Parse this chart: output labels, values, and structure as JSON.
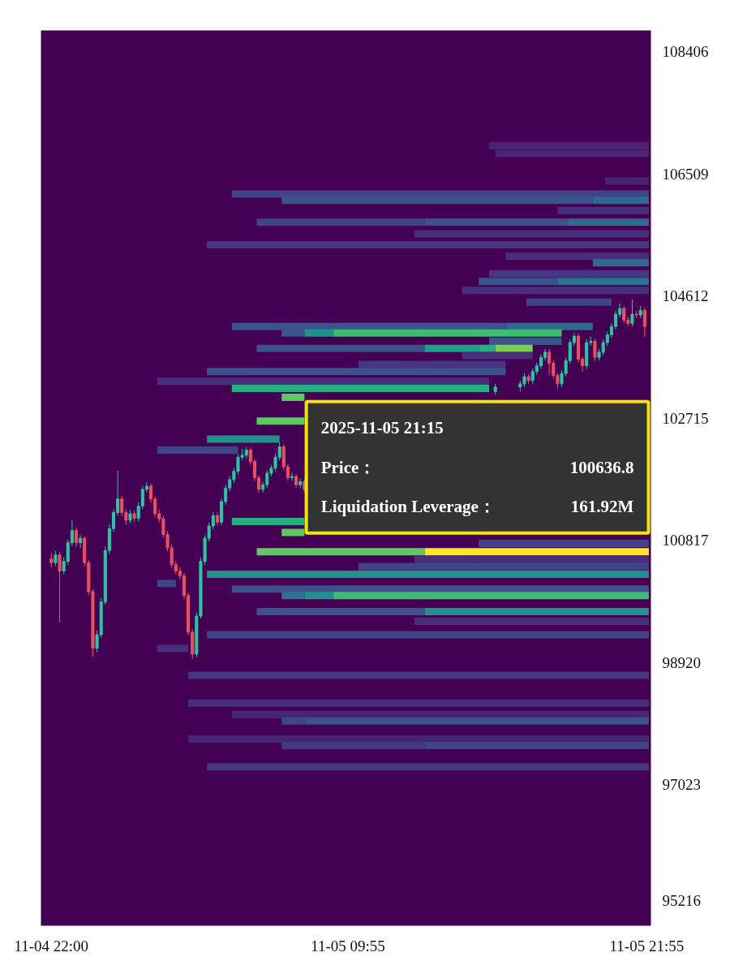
{
  "chart_data": {
    "type": "candlestick",
    "x": [
      "2025-11-04T22:00",
      "2025-11-04T22:10",
      "2025-11-04T22:20",
      "2025-11-04T22:30",
      "2025-11-04T22:40",
      "2025-11-04T22:50",
      "2025-11-04T23:00",
      "2025-11-04T23:10",
      "2025-11-04T23:20",
      "2025-11-04T23:30",
      "2025-11-04T23:40",
      "2025-11-04T23:50",
      "2025-11-05T00:00",
      "2025-11-05T00:10",
      "2025-11-05T00:20",
      "2025-11-05T00:30",
      "2025-11-05T00:40",
      "2025-11-05T00:50",
      "2025-11-05T01:00",
      "2025-11-05T01:10",
      "2025-11-05T01:20",
      "2025-11-05T01:30",
      "2025-11-05T01:40",
      "2025-11-05T01:50",
      "2025-11-05T02:00",
      "2025-11-05T02:10",
      "2025-11-05T02:20",
      "2025-11-05T02:30",
      "2025-11-05T02:40",
      "2025-11-05T02:50",
      "2025-11-05T03:00",
      "2025-11-05T03:10",
      "2025-11-05T03:20",
      "2025-11-05T03:30",
      "2025-11-05T03:40",
      "2025-11-05T03:50",
      "2025-11-05T04:00",
      "2025-11-05T04:10",
      "2025-11-05T04:20",
      "2025-11-05T04:30",
      "2025-11-05T04:40",
      "2025-11-05T04:50",
      "2025-11-05T05:00",
      "2025-11-05T05:10",
      "2025-11-05T05:20",
      "2025-11-05T05:30",
      "2025-11-05T05:40",
      "2025-11-05T05:50",
      "2025-11-05T06:00",
      "2025-11-05T06:10",
      "2025-11-05T06:20",
      "2025-11-05T06:30",
      "2025-11-05T06:40",
      "2025-11-05T06:50",
      "2025-11-05T07:00",
      "2025-11-05T07:10",
      "2025-11-05T07:20",
      "2025-11-05T07:30",
      "2025-11-05T07:40",
      "2025-11-05T07:50",
      "2025-11-05T08:00",
      "2025-11-05T08:10",
      "2025-11-05T15:50",
      "2025-11-05T16:50",
      "2025-11-05T17:00",
      "2025-11-05T17:10",
      "2025-11-05T17:20",
      "2025-11-05T17:30",
      "2025-11-05T17:40",
      "2025-11-05T17:50",
      "2025-11-05T18:00",
      "2025-11-05T18:10",
      "2025-11-05T18:20",
      "2025-11-05T18:30",
      "2025-11-05T18:40",
      "2025-11-05T18:50",
      "2025-11-05T19:00",
      "2025-11-05T19:10",
      "2025-11-05T19:20",
      "2025-11-05T19:30",
      "2025-11-05T19:40",
      "2025-11-05T19:50",
      "2025-11-05T20:00",
      "2025-11-05T20:10",
      "2025-11-05T20:20",
      "2025-11-05T20:30",
      "2025-11-05T20:40",
      "2025-11-05T20:50",
      "2025-11-05T21:00",
      "2025-11-05T21:10",
      "2025-11-05T21:20",
      "2025-11-05T21:30",
      "2025-11-05T21:40",
      "2025-11-05T21:50"
    ],
    "ohlc": [
      [
        100530,
        100620,
        100400,
        100470
      ],
      [
        100470,
        100650,
        100420,
        100590
      ],
      [
        100590,
        100640,
        99540,
        100340
      ],
      [
        100340,
        100560,
        100290,
        100490
      ],
      [
        100490,
        100830,
        100440,
        100780
      ],
      [
        100780,
        101140,
        100730,
        100970
      ],
      [
        100970,
        101020,
        100720,
        100780
      ],
      [
        100780,
        100900,
        100700,
        100850
      ],
      [
        100850,
        100880,
        100420,
        100470
      ],
      [
        100470,
        100510,
        99960,
        100020
      ],
      [
        100020,
        100060,
        99010,
        99140
      ],
      [
        99140,
        99420,
        99080,
        99350
      ],
      [
        99350,
        99920,
        99300,
        99860
      ],
      [
        99860,
        100720,
        99820,
        100660
      ],
      [
        100660,
        101060,
        100600,
        101000
      ],
      [
        101000,
        101300,
        100950,
        101250
      ],
      [
        101250,
        101900,
        101200,
        101460
      ],
      [
        101460,
        101510,
        101200,
        101250
      ],
      [
        101250,
        101300,
        101060,
        101130
      ],
      [
        101130,
        101290,
        101080,
        101230
      ],
      [
        101230,
        101280,
        101100,
        101160
      ],
      [
        101160,
        101410,
        101110,
        101350
      ],
      [
        101350,
        101660,
        101300,
        101610
      ],
      [
        101610,
        101720,
        101560,
        101660
      ],
      [
        101660,
        101700,
        101400,
        101460
      ],
      [
        101460,
        101500,
        101180,
        101230
      ],
      [
        101230,
        101290,
        101100,
        101150
      ],
      [
        101150,
        101200,
        100860,
        100910
      ],
      [
        100910,
        100960,
        100650,
        100700
      ],
      [
        100700,
        100750,
        100390,
        100440
      ],
      [
        100440,
        100500,
        100290,
        100340
      ],
      [
        100340,
        100400,
        100210,
        100270
      ],
      [
        100270,
        100310,
        99900,
        99960
      ],
      [
        99960,
        100000,
        99340,
        99390
      ],
      [
        99390,
        99430,
        98970,
        99050
      ],
      [
        99050,
        99700,
        99000,
        99640
      ],
      [
        99640,
        100550,
        99600,
        100490
      ],
      [
        100490,
        100900,
        100440,
        100850
      ],
      [
        100850,
        101090,
        100800,
        101040
      ],
      [
        101040,
        101260,
        100990,
        101200
      ],
      [
        101200,
        101250,
        101050,
        101100
      ],
      [
        101100,
        101470,
        101050,
        101420
      ],
      [
        101420,
        101680,
        101370,
        101630
      ],
      [
        101630,
        101810,
        101580,
        101760
      ],
      [
        101760,
        101940,
        101710,
        101890
      ],
      [
        101890,
        102160,
        101840,
        102110
      ],
      [
        102110,
        102240,
        102060,
        102140
      ],
      [
        102140,
        102270,
        102090,
        102220
      ],
      [
        102220,
        102260,
        101990,
        102040
      ],
      [
        102040,
        102080,
        101740,
        101790
      ],
      [
        101790,
        101830,
        101560,
        101610
      ],
      [
        101610,
        101730,
        101560,
        101680
      ],
      [
        101680,
        101910,
        101630,
        101860
      ],
      [
        101860,
        101990,
        101810,
        101940
      ],
      [
        101940,
        102160,
        101890,
        102110
      ],
      [
        102110,
        102340,
        102060,
        102270
      ],
      [
        102270,
        102310,
        101910,
        101960
      ],
      [
        101960,
        102000,
        101740,
        101790
      ],
      [
        101790,
        101870,
        101740,
        101810
      ],
      [
        101810,
        101850,
        101630,
        101680
      ],
      [
        101680,
        101780,
        101630,
        101730
      ],
      [
        101730,
        101770,
        101560,
        101610
      ],
      [
        103130,
        103250,
        103080,
        103200
      ],
      [
        103200,
        103300,
        103130,
        103250
      ],
      [
        103250,
        103410,
        103200,
        103360
      ],
      [
        103360,
        103400,
        103250,
        103300
      ],
      [
        103300,
        103490,
        103250,
        103440
      ],
      [
        103440,
        103580,
        103390,
        103530
      ],
      [
        103530,
        103710,
        103480,
        103660
      ],
      [
        103660,
        103790,
        103610,
        103740
      ],
      [
        103740,
        103790,
        103380,
        103570
      ],
      [
        103570,
        103620,
        103330,
        103380
      ],
      [
        103380,
        103420,
        103170,
        103250
      ],
      [
        103250,
        103460,
        103200,
        103410
      ],
      [
        103410,
        103660,
        103360,
        103610
      ],
      [
        103610,
        103940,
        103560,
        103890
      ],
      [
        103890,
        104040,
        103840,
        103990
      ],
      [
        103990,
        104030,
        103580,
        103630
      ],
      [
        103630,
        103670,
        103440,
        103530
      ],
      [
        103530,
        103940,
        103480,
        103890
      ],
      [
        103890,
        103980,
        103840,
        103910
      ],
      [
        103910,
        103950,
        103610,
        103660
      ],
      [
        103660,
        103790,
        103610,
        103740
      ],
      [
        103740,
        103940,
        103690,
        103890
      ],
      [
        103890,
        104060,
        103840,
        104010
      ],
      [
        104010,
        104190,
        103960,
        104140
      ],
      [
        104140,
        104380,
        104090,
        104330
      ],
      [
        104330,
        104500,
        104280,
        104420
      ],
      [
        104420,
        104460,
        104190,
        104240
      ],
      [
        104240,
        104290,
        104140,
        104190
      ],
      [
        104190,
        104560,
        104140,
        104330
      ],
      [
        104330,
        104380,
        104270,
        104320
      ],
      [
        104320,
        104460,
        104270,
        104390
      ],
      [
        104390,
        104430,
        103980,
        104140
      ]
    ],
    "colors": [
      "#ef4f5d",
      "#26c9a2",
      "#ef4f5d",
      "#26c9a2",
      "#26c9a2",
      "#26c9a2",
      "#ef4f5d",
      "#26c9a2",
      "#ef4f5d",
      "#ef4f5d",
      "#ef4f5d",
      "#26c9a2",
      "#26c9a2",
      "#26c9a2",
      "#26c9a2",
      "#26c9a2",
      "#26c9a2",
      "#ef4f5d",
      "#ef4f5d",
      "#26c9a2",
      "#ef4f5d",
      "#26c9a2",
      "#26c9a2",
      "#26c9a2",
      "#ef4f5d",
      "#ef4f5d",
      "#ef4f5d",
      "#ef4f5d",
      "#ef4f5d",
      "#ef4f5d",
      "#ef4f5d",
      "#ef4f5d",
      "#ef4f5d",
      "#ef4f5d",
      "#ef4f5d",
      "#26c9a2",
      "#26c9a2",
      "#26c9a2",
      "#26c9a2",
      "#26c9a2",
      "#ef4f5d",
      "#26c9a2",
      "#26c9a2",
      "#26c9a2",
      "#26c9a2",
      "#26c9a2",
      "#26c9a2",
      "#26c9a2",
      "#ef4f5d",
      "#ef4f5d",
      "#ef4f5d",
      "#26c9a2",
      "#26c9a2",
      "#26c9a2",
      "#26c9a2",
      "#26c9a2",
      "#ef4f5d",
      "#ef4f5d",
      "#26c9a2",
      "#ef4f5d",
      "#26c9a2",
      "#ef4f5d",
      "#26c9a2",
      "#26c9a2",
      "#26c9a2",
      "#ef4f5d",
      "#26c9a2",
      "#26c9a2",
      "#26c9a2",
      "#26c9a2",
      "#ef4f5d",
      "#ef4f5d",
      "#ef4f5d",
      "#26c9a2",
      "#26c9a2",
      "#26c9a2",
      "#26c9a2",
      "#ef4f5d",
      "#ef4f5d",
      "#26c9a2",
      "#26c9a2",
      "#ef4f5d",
      "#26c9a2",
      "#26c9a2",
      "#26c9a2",
      "#26c9a2",
      "#26c9a2",
      "#26c9a2",
      "#ef4f5d",
      "#ef4f5d",
      "#26c9a2",
      "#ef4f5d",
      "#26c9a2",
      "#ef4f5d"
    ],
    "series": [
      {
        "type": "line",
        "color": "#482475",
        "x": [
          "2025-11-05T15:35",
          "2025-11-05T22:00"
        ],
        "values": [
          106950,
          106950
        ]
      },
      {
        "type": "line",
        "color": "#482475",
        "x": [
          "2025-11-05T15:50",
          "2025-11-05T22:00"
        ],
        "values": [
          106830,
          106830
        ]
      },
      {
        "type": "line",
        "color": "#482475",
        "x": [
          "2025-11-05T20:15",
          "2025-11-05T22:00"
        ],
        "values": [
          106400,
          106400
        ]
      },
      {
        "type": "line",
        "color": "#414487",
        "x": [
          "2025-11-05T05:15",
          "2025-11-05T22:00"
        ],
        "values": [
          106200,
          106200
        ]
      },
      {
        "type": "line",
        "color": "#3b528b",
        "x": [
          "2025-11-05T07:15",
          "2025-11-05T19:45"
        ],
        "values": [
          106100,
          106100
        ]
      },
      {
        "type": "line",
        "color": "#31688e",
        "x": [
          "2025-11-05T19:45",
          "2025-11-05T22:00"
        ],
        "values": [
          106100,
          106100
        ]
      },
      {
        "type": "line",
        "color": "#472f7d",
        "x": [
          "2025-11-05T18:20",
          "2025-11-05T22:00"
        ],
        "values": [
          105940,
          105940
        ]
      },
      {
        "type": "line",
        "color": "#414487",
        "x": [
          "2025-11-05T06:15",
          "2025-11-05T13:00"
        ],
        "values": [
          105760,
          105760
        ]
      },
      {
        "type": "line",
        "color": "#3b528b",
        "x": [
          "2025-11-05T13:00",
          "2025-11-05T18:45"
        ],
        "values": [
          105760,
          105760
        ]
      },
      {
        "type": "line",
        "color": "#31688e",
        "x": [
          "2025-11-05T18:45",
          "2025-11-05T22:00"
        ],
        "values": [
          105760,
          105760
        ]
      },
      {
        "type": "line",
        "color": "#472f7d",
        "x": [
          "2025-11-05T12:35",
          "2025-11-05T22:00"
        ],
        "values": [
          105580,
          105580
        ]
      },
      {
        "type": "line",
        "color": "#453781",
        "x": [
          "2025-11-05T04:15",
          "2025-11-05T22:00"
        ],
        "values": [
          105410,
          105410
        ]
      },
      {
        "type": "line",
        "color": "#472f7d",
        "x": [
          "2025-11-05T16:15",
          "2025-11-05T22:00"
        ],
        "values": [
          105230,
          105230
        ]
      },
      {
        "type": "line",
        "color": "#31688e",
        "x": [
          "2025-11-05T19:45",
          "2025-11-05T22:00"
        ],
        "values": [
          105130,
          105130
        ]
      },
      {
        "type": "line",
        "color": "#453781",
        "x": [
          "2025-11-05T15:35",
          "2025-11-05T22:00"
        ],
        "values": [
          104960,
          104960
        ]
      },
      {
        "type": "line",
        "color": "#3b528b",
        "x": [
          "2025-11-05T15:10",
          "2025-11-05T18:20"
        ],
        "values": [
          104840,
          104840
        ]
      },
      {
        "type": "line",
        "color": "#2c728e",
        "x": [
          "2025-11-05T18:20",
          "2025-11-05T22:00"
        ],
        "values": [
          104840,
          104840
        ]
      },
      {
        "type": "line",
        "color": "#472f7d",
        "x": [
          "2025-11-05T14:30",
          "2025-11-05T22:00"
        ],
        "values": [
          104700,
          104700
        ]
      },
      {
        "type": "line",
        "color": "#414487",
        "x": [
          "2025-11-05T17:05",
          "2025-11-05T20:30"
        ],
        "values": [
          104520,
          104520
        ]
      },
      {
        "type": "line",
        "color": "#3b528b",
        "x": [
          "2025-11-05T05:15",
          "2025-11-05T16:15"
        ],
        "values": [
          104140,
          104140
        ]
      },
      {
        "type": "line",
        "color": "#31688e",
        "x": [
          "2025-11-05T16:15",
          "2025-11-05T19:45"
        ],
        "values": [
          104140,
          104140
        ]
      },
      {
        "type": "line",
        "color": "#3b528b",
        "x": [
          "2025-11-05T07:15",
          "2025-11-05T08:10"
        ],
        "values": [
          104040,
          104040
        ]
      },
      {
        "type": "line",
        "color": "#21918c",
        "x": [
          "2025-11-05T08:10",
          "2025-11-05T09:20"
        ],
        "values": [
          104040,
          104040
        ]
      },
      {
        "type": "line",
        "color": "#3fbc73",
        "x": [
          "2025-11-05T09:20",
          "2025-11-05T18:30"
        ],
        "values": [
          104040,
          104040
        ]
      },
      {
        "type": "line",
        "color": "#3b528b",
        "x": [
          "2025-11-05T15:35",
          "2025-11-05T18:30"
        ],
        "values": [
          103910,
          103910
        ]
      },
      {
        "type": "line",
        "color": "#3b528b",
        "x": [
          "2025-11-05T06:15",
          "2025-11-05T13:00"
        ],
        "values": [
          103800,
          103800
        ]
      },
      {
        "type": "line",
        "color": "#1fa088",
        "x": [
          "2025-11-05T13:00",
          "2025-11-05T15:10"
        ],
        "values": [
          103800,
          103800
        ]
      },
      {
        "type": "line",
        "color": "#28ae80",
        "x": [
          "2025-11-05T15:10",
          "2025-11-05T15:50"
        ],
        "values": [
          103800,
          103800
        ]
      },
      {
        "type": "line",
        "color": "#7ad151",
        "x": [
          "2025-11-05T15:50",
          "2025-11-05T17:20"
        ],
        "values": [
          103800,
          103800
        ]
      },
      {
        "type": "line",
        "color": "#472f7d",
        "x": [
          "2025-11-05T14:30",
          "2025-11-05T17:20"
        ],
        "values": [
          103690,
          103690
        ]
      },
      {
        "type": "line",
        "color": "#453781",
        "x": [
          "2025-11-05T10:20",
          "2025-11-05T16:15"
        ],
        "values": [
          103550,
          103550
        ]
      },
      {
        "type": "line",
        "color": "#3b528b",
        "x": [
          "2025-11-05T04:15",
          "2025-11-05T16:15"
        ],
        "values": [
          103440,
          103440
        ]
      },
      {
        "type": "line",
        "color": "#472f7d",
        "x": [
          "2025-11-05T02:15",
          "2025-11-05T15:35"
        ],
        "values": [
          103290,
          103290
        ]
      },
      {
        "type": "line",
        "color": "#28ae80",
        "x": [
          "2025-11-05T05:15",
          "2025-11-05T15:35"
        ],
        "values": [
          103180,
          103180
        ]
      },
      {
        "type": "line",
        "color": "#5ec962",
        "x": [
          "2025-11-05T07:15",
          "2025-11-05T08:10"
        ],
        "values": [
          103040,
          103040
        ]
      },
      {
        "type": "line",
        "color": "#5ec962",
        "x": [
          "2025-11-05T06:15",
          "2025-11-05T08:10"
        ],
        "values": [
          102670,
          102670
        ]
      },
      {
        "type": "line",
        "color": "#21918c",
        "x": [
          "2025-11-05T04:15",
          "2025-11-05T07:10"
        ],
        "values": [
          102390,
          102390
        ]
      },
      {
        "type": "line",
        "color": "#414487",
        "x": [
          "2025-11-05T02:15",
          "2025-11-05T05:30"
        ],
        "values": [
          102220,
          102220
        ]
      },
      {
        "type": "line",
        "color": "#28ae80",
        "x": [
          "2025-11-05T05:15",
          "2025-11-05T08:10"
        ],
        "values": [
          101110,
          101110
        ]
      },
      {
        "type": "line",
        "color": "#5ec962",
        "x": [
          "2025-11-05T07:15",
          "2025-11-05T08:10"
        ],
        "values": [
          100940,
          100940
        ]
      },
      {
        "type": "line",
        "color": "#414487",
        "x": [
          "2025-11-05T15:10",
          "2025-11-05T22:00"
        ],
        "values": [
          100770,
          100770
        ]
      },
      {
        "type": "line",
        "color": "#5ec962",
        "x": [
          "2025-11-05T06:15",
          "2025-11-05T13:00"
        ],
        "values": [
          100640,
          100640
        ]
      },
      {
        "type": "line",
        "color": "#fde725",
        "x": [
          "2025-11-05T13:00",
          "2025-11-05T22:00"
        ],
        "values": [
          100640,
          100640
        ]
      },
      {
        "type": "line",
        "color": "#472f7d",
        "x": [
          "2025-11-05T12:35",
          "2025-11-05T22:00"
        ],
        "values": [
          100520,
          100520
        ]
      },
      {
        "type": "line",
        "color": "#414487",
        "x": [
          "2025-11-05T10:20",
          "2025-11-05T22:00"
        ],
        "values": [
          100410,
          100410
        ]
      },
      {
        "type": "line",
        "color": "#21918c",
        "x": [
          "2025-11-05T04:15",
          "2025-11-05T22:00"
        ],
        "values": [
          100290,
          100290
        ]
      },
      {
        "type": "line",
        "color": "#414487",
        "x": [
          "2025-11-05T02:15",
          "2025-11-05T03:00"
        ],
        "values": [
          100150,
          100150
        ]
      },
      {
        "type": "line",
        "color": "#3b528b",
        "x": [
          "2025-11-05T05:15",
          "2025-11-05T22:00"
        ],
        "values": [
          100060,
          100060
        ]
      },
      {
        "type": "line",
        "color": "#2c728e",
        "x": [
          "2025-11-05T07:15",
          "2025-11-05T08:10"
        ],
        "values": [
          99960,
          99960
        ]
      },
      {
        "type": "line",
        "color": "#21918c",
        "x": [
          "2025-11-05T08:10",
          "2025-11-05T09:20"
        ],
        "values": [
          99960,
          99960
        ]
      },
      {
        "type": "line",
        "color": "#3fbc73",
        "x": [
          "2025-11-05T09:20",
          "2025-11-05T22:00"
        ],
        "values": [
          99960,
          99960
        ]
      },
      {
        "type": "line",
        "color": "#3b528b",
        "x": [
          "2025-11-05T06:15",
          "2025-11-05T13:00"
        ],
        "values": [
          99710,
          99710
        ]
      },
      {
        "type": "line",
        "color": "#21918c",
        "x": [
          "2025-11-05T13:00",
          "2025-11-05T22:00"
        ],
        "values": [
          99710,
          99710
        ]
      },
      {
        "type": "line",
        "color": "#472f7d",
        "x": [
          "2025-11-05T12:35",
          "2025-11-05T22:00"
        ],
        "values": [
          99560,
          99560
        ]
      },
      {
        "type": "line",
        "color": "#414487",
        "x": [
          "2025-11-05T04:15",
          "2025-11-05T22:00"
        ],
        "values": [
          99350,
          99350
        ]
      },
      {
        "type": "line",
        "color": "#472f7d",
        "x": [
          "2025-11-05T02:15",
          "2025-11-05T03:30"
        ],
        "values": [
          99140,
          99140
        ]
      },
      {
        "type": "line",
        "color": "#453781",
        "x": [
          "2025-11-05T03:30",
          "2025-11-05T22:00"
        ],
        "values": [
          98720,
          98720
        ]
      },
      {
        "type": "line",
        "color": "#472f7d",
        "x": [
          "2025-11-05T03:30",
          "2025-11-05T22:00"
        ],
        "values": [
          98290,
          98290
        ]
      },
      {
        "type": "line",
        "color": "#482475",
        "x": [
          "2025-11-05T05:15",
          "2025-11-05T22:00"
        ],
        "values": [
          98110,
          98110
        ]
      },
      {
        "type": "line",
        "color": "#414487",
        "x": [
          "2025-11-05T07:15",
          "2025-11-05T08:10"
        ],
        "values": [
          98010,
          98010
        ]
      },
      {
        "type": "line",
        "color": "#3b528b",
        "x": [
          "2025-11-05T08:10",
          "2025-11-05T22:00"
        ],
        "values": [
          98010,
          98010
        ]
      },
      {
        "type": "line",
        "color": "#482475",
        "x": [
          "2025-11-05T03:30",
          "2025-11-05T22:00"
        ],
        "values": [
          97730,
          97730
        ]
      },
      {
        "type": "line",
        "color": "#453781",
        "x": [
          "2025-11-05T07:15",
          "2025-11-05T13:00"
        ],
        "values": [
          97630,
          97630
        ]
      },
      {
        "type": "line",
        "color": "#414487",
        "x": [
          "2025-11-05T13:00",
          "2025-11-05T22:00"
        ],
        "values": [
          97630,
          97630
        ]
      },
      {
        "type": "line",
        "color": "#453781",
        "x": [
          "2025-11-05T04:15",
          "2025-11-05T22:00"
        ],
        "values": [
          97300,
          97300
        ]
      }
    ],
    "xlim": [
      "2025-11-04T21:35",
      "2025-11-05T22:05"
    ],
    "xticks": [
      {
        "value": "2025-11-04T22:00",
        "label": "11-04 22:00"
      },
      {
        "value": "2025-11-05T09:55",
        "label": "11-05 09:55"
      },
      {
        "value": "2025-11-05T21:55",
        "label": "11-05 21:55"
      }
    ],
    "ylim": [
      94830,
      108740
    ],
    "yticks": [
      95216,
      97023,
      98920,
      100817,
      102715,
      104612,
      106509,
      108406
    ],
    "annotations": [
      "2025-11-05 21:15",
      "Price：",
      "100636.8",
      "Liquidation Leverage：",
      "161.92M"
    ]
  }
}
